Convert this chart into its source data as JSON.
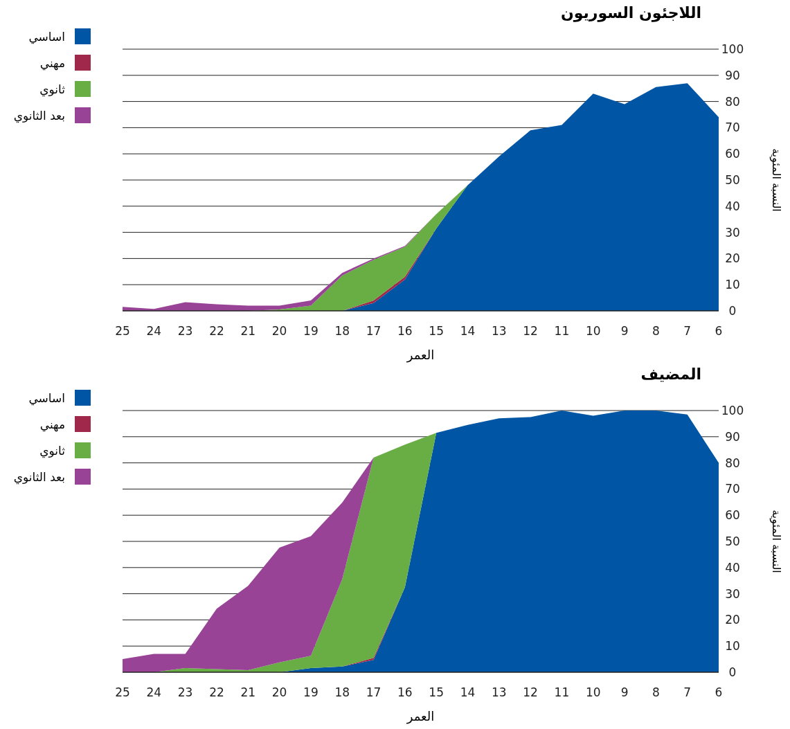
{
  "chart_data": [
    {
      "type": "area",
      "title": "اللاجئون السوريون",
      "xlabel": "العمر",
      "ylabel": "النسبة المئوية",
      "categories": [
        "25",
        "24",
        "23",
        "22",
        "21",
        "20",
        "19",
        "18",
        "17",
        "16",
        "15",
        "14",
        "13",
        "12",
        "11",
        "10",
        "9",
        "8",
        "7",
        "6"
      ],
      "stacked": true,
      "ylim": [
        0,
        100
      ],
      "yticks": [
        0,
        10,
        20,
        30,
        40,
        50,
        60,
        70,
        80,
        90,
        100
      ],
      "grid": "y",
      "legend": "top left",
      "series": [
        {
          "name": "اساسي",
          "color": "#0055a4",
          "values": [
            0,
            0,
            0,
            0,
            0,
            0,
            0,
            0,
            3,
            12,
            31.5,
            48,
            59,
            69,
            71,
            83,
            79,
            85.5,
            87,
            74
          ]
        },
        {
          "name": "مهني",
          "color": "#a0284a",
          "values": [
            null,
            null,
            null,
            null,
            null,
            null,
            null,
            0,
            1,
            1,
            0,
            null,
            null,
            null,
            null,
            null,
            null,
            null,
            null,
            null
          ]
        },
        {
          "name": "ثانوي",
          "color": "#69ad45",
          "values": [
            null,
            null,
            null,
            null,
            0,
            0.5,
            2,
            13.5,
            15.5,
            11.5,
            5.5,
            0,
            null,
            null,
            null,
            null,
            null,
            null,
            null,
            null
          ]
        },
        {
          "name": "بعد الثانوي",
          "color": "#984396",
          "values": [
            1.5,
            0.7,
            3.3,
            2.5,
            2,
            1.5,
            2,
            1,
            0.5,
            0.3,
            0,
            null,
            null,
            null,
            null,
            null,
            null,
            null,
            null,
            null
          ]
        }
      ]
    },
    {
      "type": "area",
      "title": "المضيف",
      "xlabel": "العمر",
      "ylabel": "النسبة المئوية",
      "categories": [
        "25",
        "24",
        "23",
        "22",
        "21",
        "20",
        "19",
        "18",
        "17",
        "16",
        "15",
        "14",
        "13",
        "12",
        "11",
        "10",
        "9",
        "8",
        "7",
        "6"
      ],
      "stacked": true,
      "ylim": [
        0,
        100
      ],
      "yticks": [
        0,
        10,
        20,
        30,
        40,
        50,
        60,
        70,
        80,
        90,
        100
      ],
      "grid": "y",
      "legend": "top left",
      "series": [
        {
          "name": "اساسي",
          "color": "#0055a4",
          "values": [
            0,
            0,
            0,
            0,
            0,
            0,
            1.6,
            2.2,
            4.7,
            32.5,
            91.5,
            94.5,
            97,
            97.5,
            100,
            98,
            100,
            100,
            98.5,
            80
          ]
        },
        {
          "name": "مهني",
          "color": "#a0284a",
          "values": [
            null,
            null,
            null,
            null,
            null,
            null,
            null,
            0,
            0.8,
            0,
            null,
            null,
            null,
            null,
            null,
            null,
            null,
            null,
            null,
            null
          ]
        },
        {
          "name": "ثانوي",
          "color": "#69ad45",
          "values": [
            null,
            0,
            1.6,
            1.2,
            0.8,
            3.8,
            4.7,
            33.3,
            76.5,
            54.5,
            0,
            null,
            null,
            null,
            null,
            null,
            null,
            null,
            null,
            null
          ]
        },
        {
          "name": "بعد الثانوي",
          "color": "#984396",
          "values": [
            5,
            7,
            5.4,
            23.1,
            32.2,
            43.8,
            45.7,
            29.3,
            0,
            null,
            null,
            null,
            null,
            null,
            null,
            null,
            null,
            null,
            null,
            null
          ]
        }
      ]
    }
  ]
}
